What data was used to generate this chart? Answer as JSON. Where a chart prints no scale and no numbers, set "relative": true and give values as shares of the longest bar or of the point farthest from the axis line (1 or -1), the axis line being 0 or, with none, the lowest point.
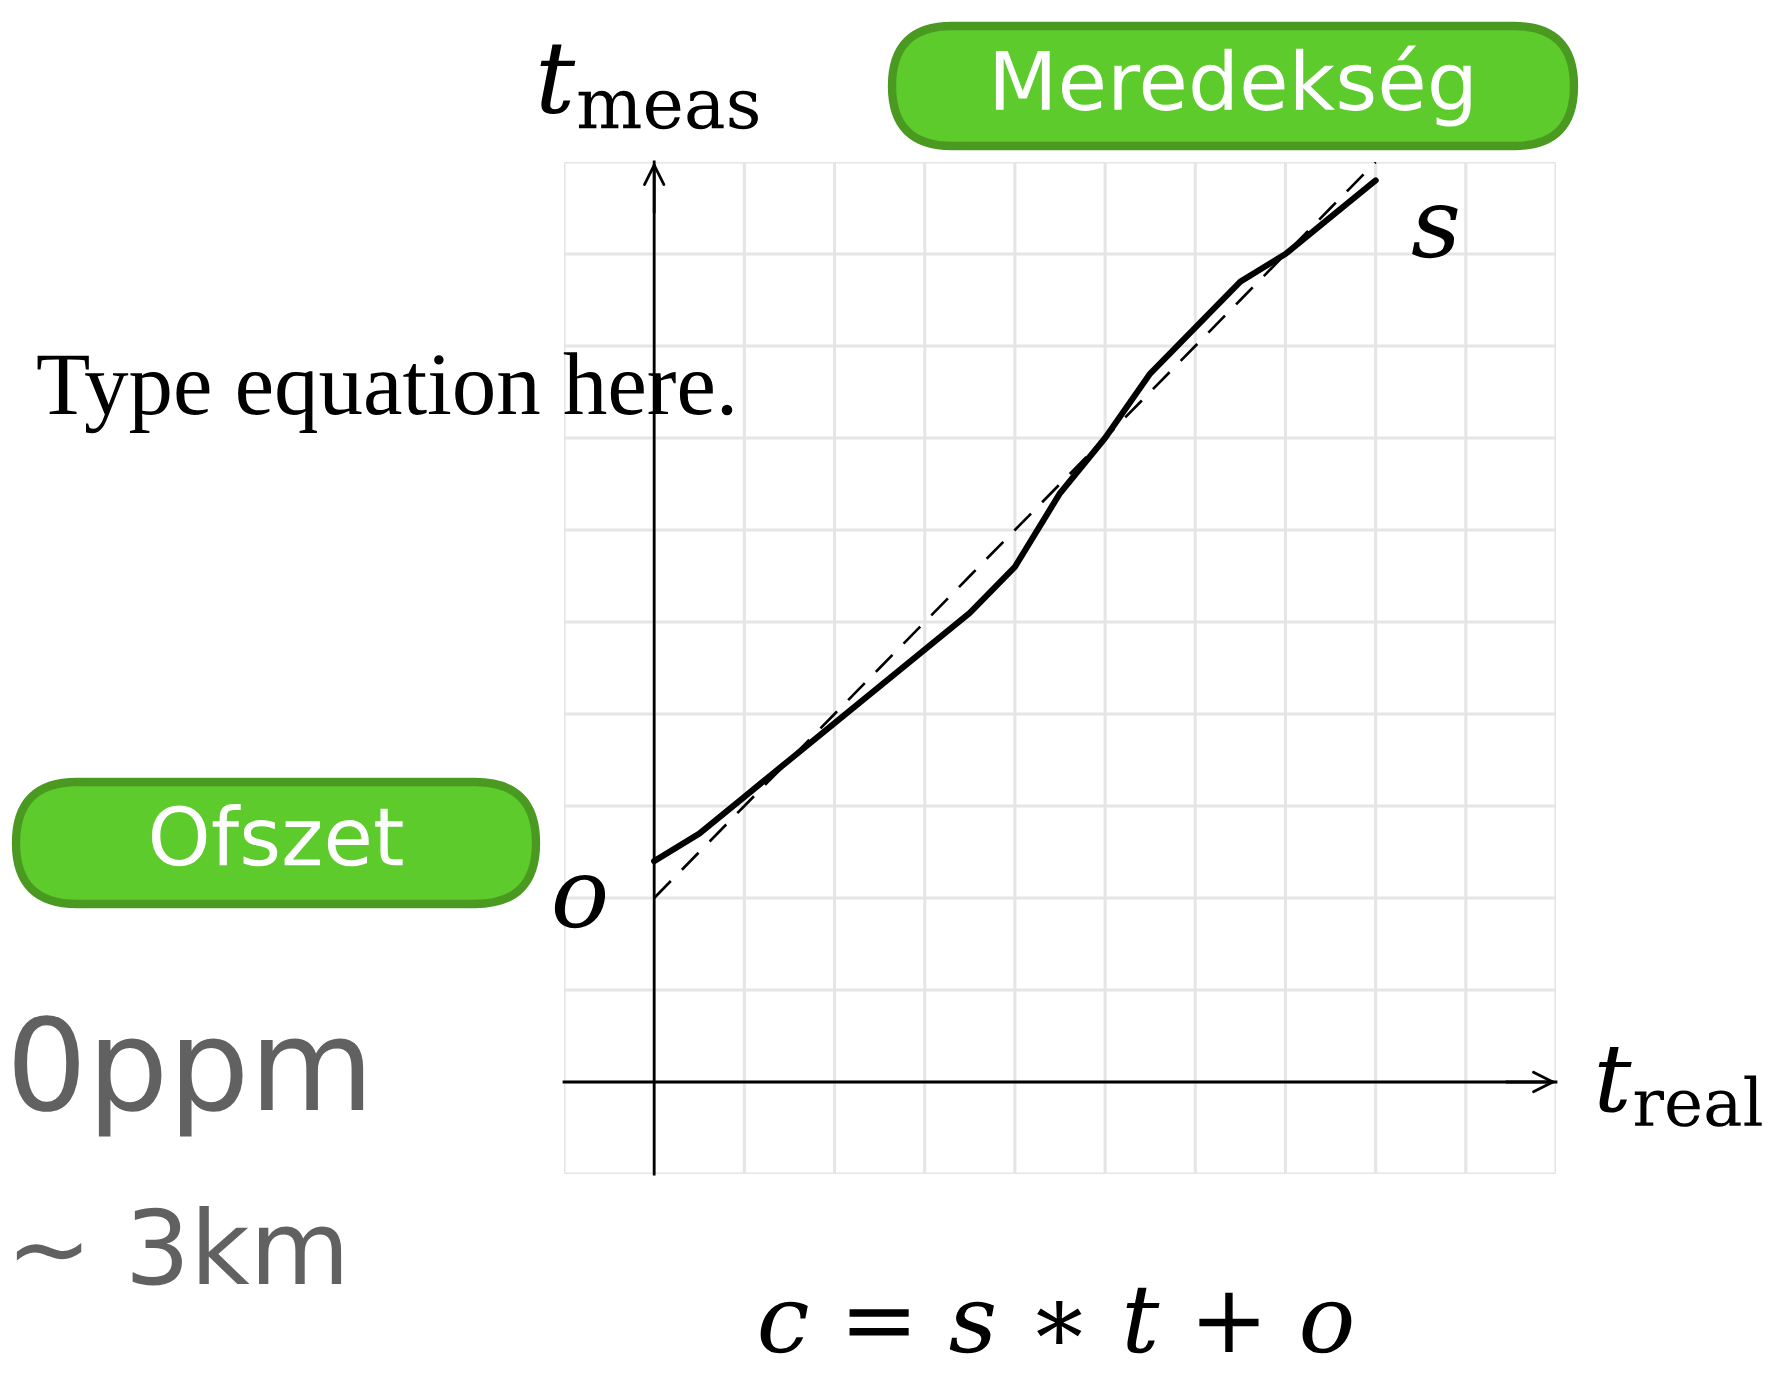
{
  "chart_data": {
    "type": "line",
    "relative": true,
    "line_style": "solid",
    "grid": true,
    "tick_labels": false,
    "xlabel": "t$_{real}$",
    "ylabel": "t$_{meas}$",
    "categories": [
      null,
      null,
      null,
      null,
      null,
      null,
      null,
      null,
      null,
      null,
      null,
      null,
      null,
      null,
      null,
      null,
      null
    ],
    "series": [
      {
        "color": "#000000",
        "values": [
          0.24,
          0.27,
          0.31,
          0.35,
          0.39,
          0.43,
          0.47,
          0.51,
          0.56,
          0.64,
          0.7,
          0.77,
          0.82,
          0.87,
          0.9,
          0.94,
          0.98
        ]
      },
      {
        "color": "#000000",
        "line_style": "dashed",
        "values": [
          0.2,
          0.25,
          0.3,
          0.35,
          0.4,
          0.45,
          0.5,
          0.55,
          0.6,
          0.65,
          0.7,
          0.75,
          0.8,
          0.85,
          0.9,
          0.95,
          1.0
        ]
      }
    ],
    "annotations": [
      "Meredekség",
      "Ofszet",
      "Type equation here.",
      "0ppm",
      "~ 3km",
      "c = s ∗ t + o",
      "o",
      "s"
    ]
  }
}
